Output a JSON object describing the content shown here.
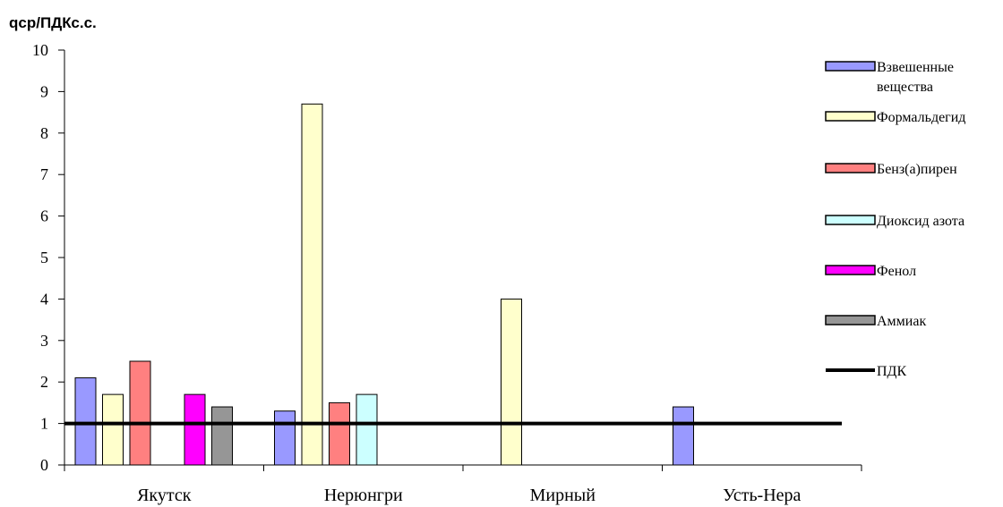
{
  "chart_data": {
    "type": "bar",
    "ylabel": "qср/ПДКс.с.",
    "xlabel": "",
    "ylim": [
      0,
      10
    ],
    "yticks": [
      "0",
      "1",
      "2",
      "3",
      "4",
      "5",
      "6",
      "7",
      "8",
      "9",
      "10"
    ],
    "categories": [
      "Якутск",
      "Нерюнгри",
      "Мирный",
      "Усть-Нера"
    ],
    "series": [
      {
        "name": "Взвешенные вещества",
        "name_lines": [
          "Взвешенные",
          "вещества"
        ],
        "color": "#9999ff",
        "values": [
          2.1,
          1.3,
          null,
          1.4
        ]
      },
      {
        "name": "Формальдегид",
        "name_lines": [
          "Формальдегид"
        ],
        "color": "#ffffcc",
        "values": [
          1.7,
          8.7,
          4.0,
          null
        ]
      },
      {
        "name": "Бенз(а)пирен",
        "name_lines": [
          "Бенз(а)пирен"
        ],
        "color": "#ff8080",
        "values": [
          2.5,
          1.5,
          null,
          null
        ]
      },
      {
        "name": "Диоксид азота",
        "name_lines": [
          "Диоксид азота"
        ],
        "color": "#ccffff",
        "values": [
          null,
          1.7,
          null,
          null
        ]
      },
      {
        "name": "Фенол",
        "name_lines": [
          "Фенол"
        ],
        "color": "#ff00ff",
        "values": [
          1.7,
          null,
          null,
          null
        ]
      },
      {
        "name": "Аммиак",
        "name_lines": [
          "Аммиак"
        ],
        "color": "#969696",
        "values": [
          1.4,
          null,
          null,
          null
        ]
      }
    ],
    "reference_line": {
      "name": "ПДК",
      "value": 1,
      "color": "#000000"
    },
    "grid": false,
    "legend": "right"
  }
}
